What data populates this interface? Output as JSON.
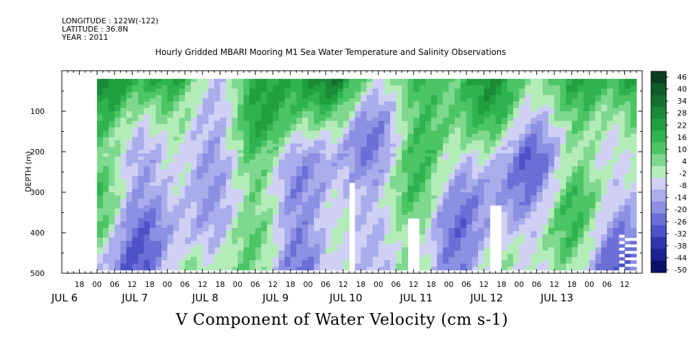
{
  "header": {
    "longitude": "LONGITUDE : 122W(-122)",
    "latitude": "LATITUDE : 36.8N",
    "year": "YEAR : 2011"
  },
  "chart_data": {
    "type": "heatmap",
    "title": "Hourly Gridded MBARI Mooring M1 Sea Water Temperature and Salinity Observations",
    "xlabel": "V Component of Water Velocity (cm s-1)",
    "ylabel": "DEPTH (m)",
    "ylim": [
      500,
      0
    ],
    "y_ticks": [
      100,
      200,
      300,
      400,
      500
    ],
    "x_range_hours": [
      -12,
      186
    ],
    "x_hour_ticks": [
      "18",
      "00",
      "06",
      "12",
      "18",
      "00",
      "06",
      "12",
      "18",
      "00",
      "06",
      "12",
      "18",
      "00",
      "06",
      "12",
      "18",
      "00",
      "06",
      "12",
      "18",
      "00",
      "06",
      "12",
      "18",
      "00",
      "06",
      "12",
      "18",
      "00",
      "06",
      "12"
    ],
    "x_day_labels": [
      {
        "label": "JUL  6",
        "hour": -12
      },
      {
        "label": "JUL  7",
        "hour": 12
      },
      {
        "label": "JUL  8",
        "hour": 36
      },
      {
        "label": "JUL  9",
        "hour": 60
      },
      {
        "label": "JUL 10",
        "hour": 84
      },
      {
        "label": "JUL 11",
        "hour": 108
      },
      {
        "label": "JUL 12",
        "hour": 132
      },
      {
        "label": "JUL 13",
        "hour": 156
      }
    ],
    "colorbar": {
      "labels": [
        "46",
        "40",
        "34",
        "28",
        "22",
        "16",
        "10",
        "4",
        "-2",
        "-8",
        "-14",
        "-20",
        "-26",
        "-32",
        "-38",
        "-44",
        "-50"
      ],
      "colors": [
        "#0b3d1f",
        "#10592b",
        "#14702f",
        "#1a8a37",
        "#22a040",
        "#2fb34e",
        "#4cc565",
        "#7ed88e",
        "#b4ecb8",
        "#cfd0f4",
        "#a9adeb",
        "#8b90e2",
        "#6b6fd6",
        "#4d52c8",
        "#3035b0",
        "#1c2190",
        "#0c1068"
      ]
    },
    "series_description_note": ""
  }
}
